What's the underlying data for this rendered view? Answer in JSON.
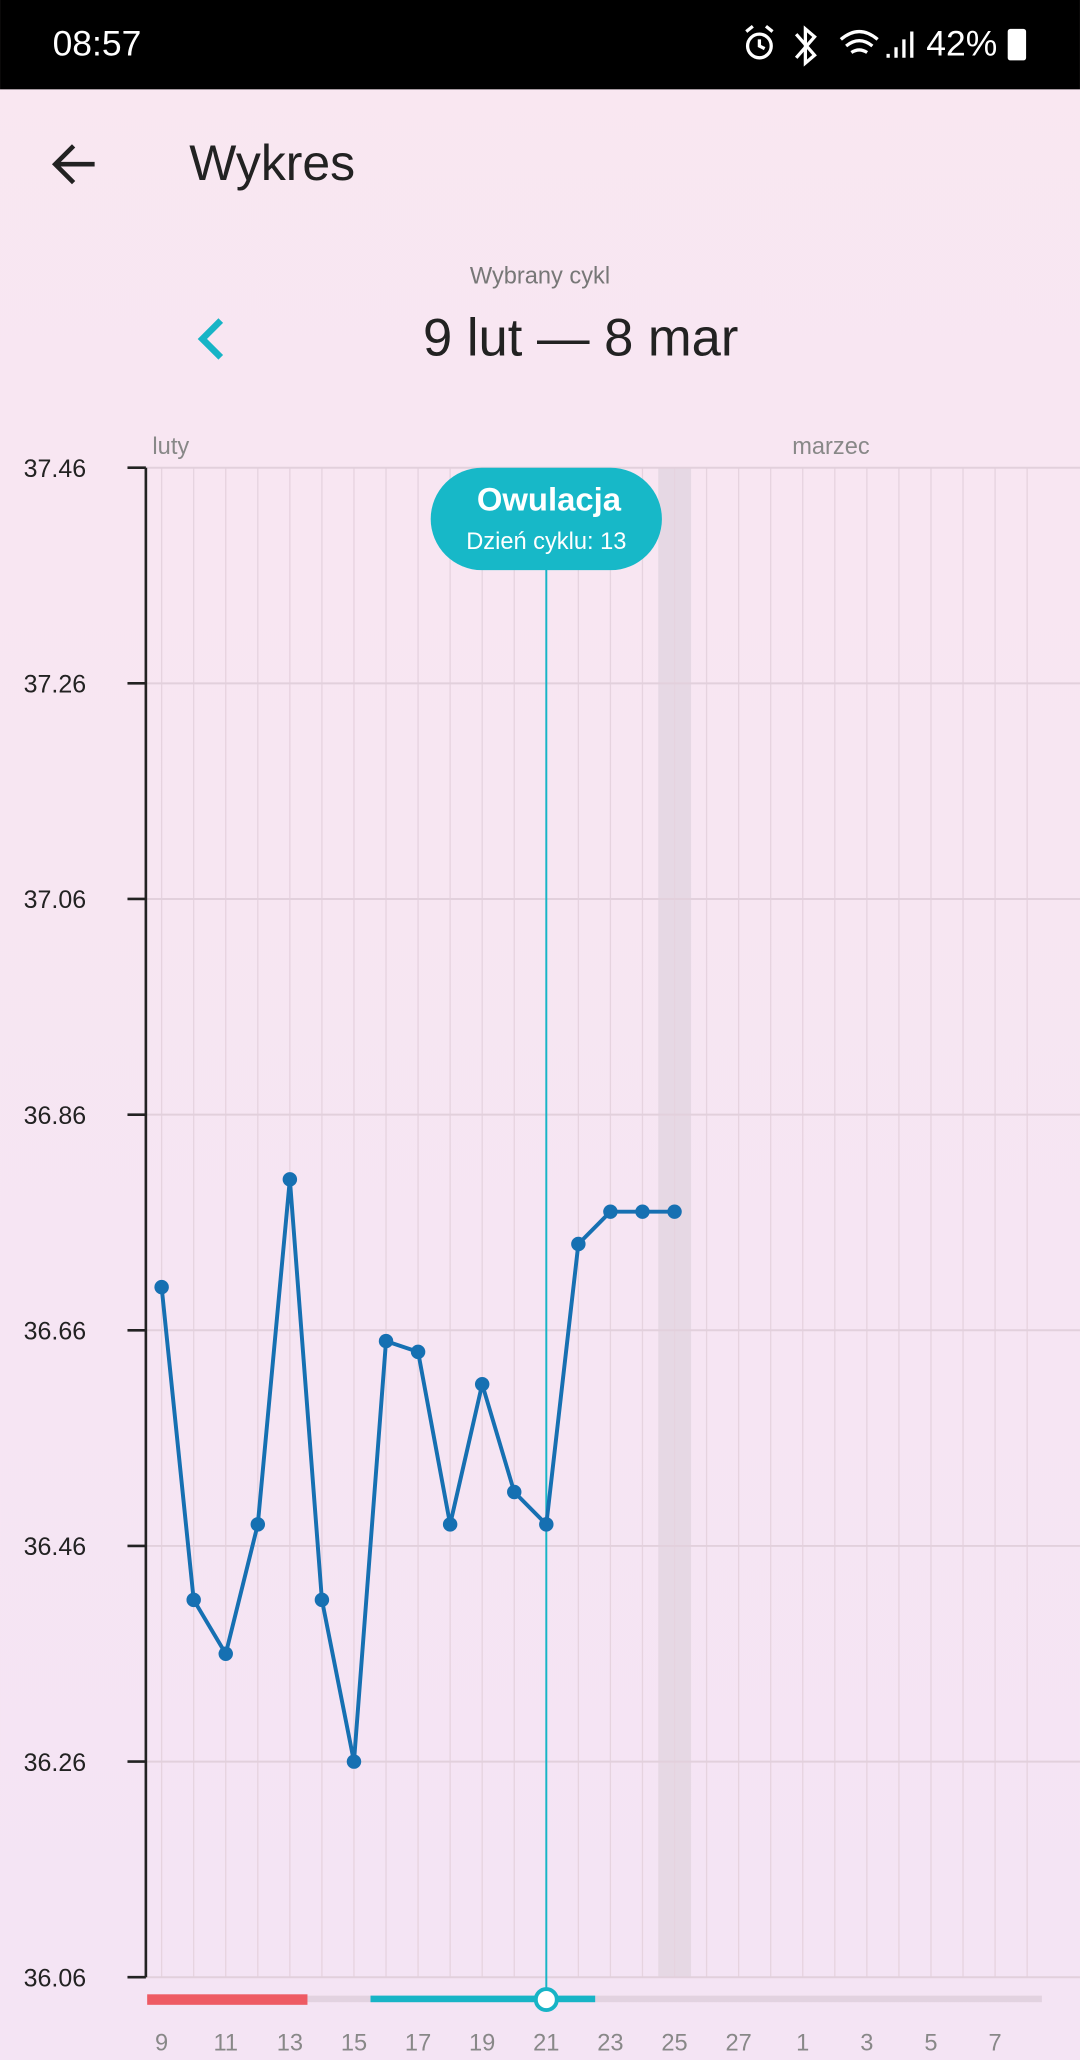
{
  "status_bar": {
    "time": "08:57",
    "battery": "42%"
  },
  "header": {
    "title": "Wykres"
  },
  "cycle": {
    "caption": "Wybrany cykl",
    "range": "9 lut — 8 mar"
  },
  "chart_data": {
    "type": "line",
    "months": [
      "luty",
      "marzec"
    ],
    "categories": [
      "9",
      null,
      "11",
      null,
      "13",
      null,
      "15",
      null,
      "17",
      null,
      "19",
      null,
      "21",
      null,
      "23",
      null,
      "25",
      null,
      "27",
      null,
      "1",
      null,
      "3",
      null,
      "5",
      null,
      "7",
      null
    ],
    "series": [
      {
        "color": "#1670b2",
        "values": [
          36.7,
          36.41,
          36.36,
          36.48,
          36.8,
          36.41,
          36.26,
          36.65,
          36.64,
          36.48,
          36.61,
          36.51,
          36.48,
          36.74,
          36.77,
          36.77,
          36.77,
          null,
          null,
          null,
          null,
          null,
          null,
          null,
          null,
          null,
          null,
          null
        ]
      }
    ],
    "ylim": [
      36.06,
      37.46
    ],
    "yticks": [
      36.06,
      36.26,
      36.46,
      36.66,
      36.86,
      37.06,
      37.26,
      37.46
    ],
    "grid": true,
    "annotation": {
      "title": "Owulacja",
      "label": "Dzień cyklu: 13",
      "cycle_day": 13
    }
  }
}
